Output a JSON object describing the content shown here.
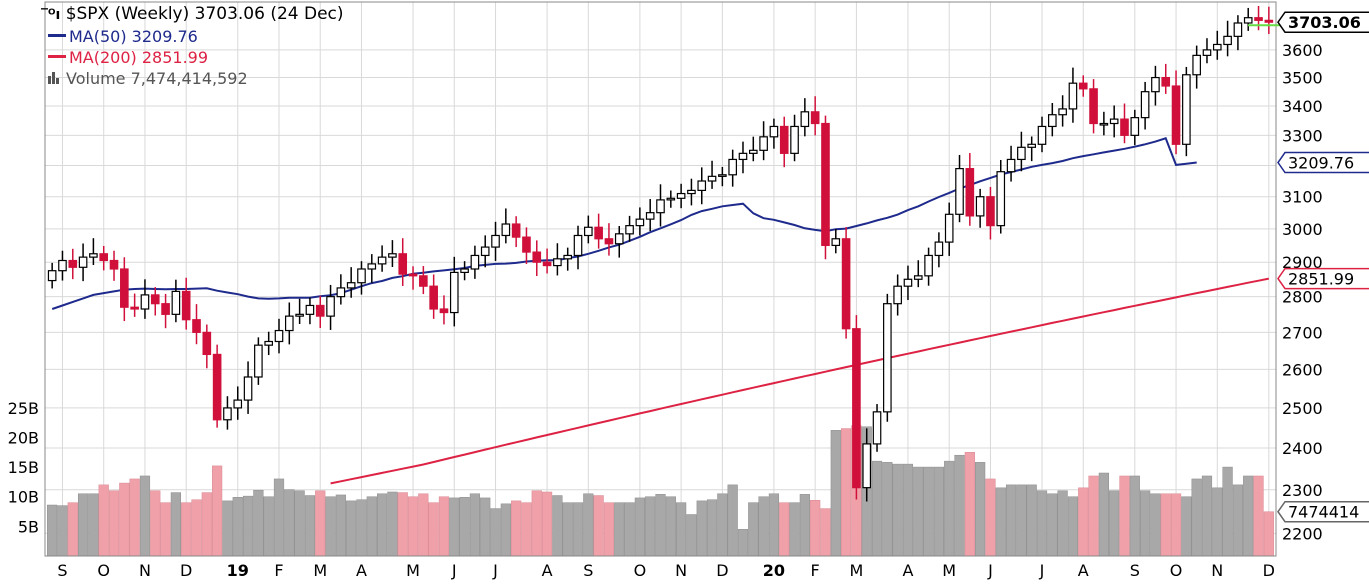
{
  "legend": {
    "title": "$SPX (Weekly) 3703.06 (24 Dec)",
    "ma50": "MA(50) 3209.76",
    "ma200": "MA(200) 2851.99",
    "volume": "Volume 7,474,414,592"
  },
  "colors": {
    "up": "#000000",
    "down": "#d0103a",
    "ma50": "#1e2a8c",
    "ma200": "#dd2244",
    "vol_up": "#a8a8a8",
    "vol_down": "#f0a0a8",
    "grid": "#d9d9d9",
    "last_line": "#66dd44"
  },
  "chart_data": {
    "type": "candlestick",
    "title": "$SPX (Weekly) 3703.06 (24 Dec)",
    "price_axis": {
      "ticks": [
        2200,
        2300,
        2400,
        2500,
        2600,
        2700,
        2800,
        2900,
        3000,
        3100,
        3200,
        3300,
        3400,
        3500,
        3600
      ],
      "tick_labels": [
        "2200",
        "2300",
        "2400",
        "2500",
        "2600",
        "2700",
        "2800",
        "2900",
        "3000",
        "3100",
        "",
        "3300",
        "3400",
        "3500",
        "3600"
      ],
      "scale": "log",
      "range": [
        2150,
        3780
      ]
    },
    "volume_axis": {
      "ticks": [
        5,
        10,
        15,
        20,
        25
      ],
      "tick_labels": [
        "5B",
        "10B",
        "15B",
        "20B",
        "25B"
      ],
      "unit": "B",
      "range": [
        0,
        28
      ]
    },
    "x_labels": [
      {
        "label": "S",
        "week": 1
      },
      {
        "label": "O",
        "week": 5
      },
      {
        "label": "N",
        "week": 9
      },
      {
        "label": "D",
        "week": 13
      },
      {
        "label": "19",
        "week": 18,
        "bold": true
      },
      {
        "label": "F",
        "week": 22
      },
      {
        "label": "M",
        "week": 26
      },
      {
        "label": "A",
        "week": 30
      },
      {
        "label": "M",
        "week": 35
      },
      {
        "label": "J",
        "week": 39
      },
      {
        "label": "J",
        "week": 43
      },
      {
        "label": "A",
        "week": 48
      },
      {
        "label": "S",
        "week": 52
      },
      {
        "label": "O",
        "week": 57
      },
      {
        "label": "N",
        "week": 61
      },
      {
        "label": "D",
        "week": 65
      },
      {
        "label": "20",
        "week": 70,
        "bold": true
      },
      {
        "label": "F",
        "week": 74
      },
      {
        "label": "M",
        "week": 78
      },
      {
        "label": "A",
        "week": 83
      },
      {
        "label": "M",
        "week": 87
      },
      {
        "label": "J",
        "week": 91
      },
      {
        "label": "J",
        "week": 96
      },
      {
        "label": "A",
        "week": 100
      },
      {
        "label": "S",
        "week": 105
      },
      {
        "label": "O",
        "week": 109
      },
      {
        "label": "N",
        "week": 113
      },
      {
        "label": "D",
        "week": 118
      }
    ],
    "right_labels": [
      {
        "text": "3703.06",
        "value": 3703.06,
        "style": "last"
      },
      {
        "text": "3209.76",
        "value": 3209.76,
        "style": "ma50"
      },
      {
        "text": "2851.99",
        "value": 2851.99,
        "style": "ma200"
      },
      {
        "text": "7474414",
        "volume": 7.47,
        "style": "volume"
      }
    ],
    "closes": [
      2875,
      2905,
      2885,
      2915,
      2925,
      2905,
      2880,
      2770,
      2765,
      2805,
      2780,
      2750,
      2815,
      2735,
      2700,
      2640,
      2470,
      2500,
      2520,
      2580,
      2665,
      2675,
      2705,
      2745,
      2750,
      2775,
      2745,
      2800,
      2825,
      2840,
      2880,
      2895,
      2915,
      2925,
      2865,
      2860,
      2830,
      2765,
      2755,
      2870,
      2880,
      2920,
      2945,
      2980,
      3015,
      2975,
      2930,
      2900,
      2890,
      2910,
      2920,
      2980,
      3005,
      2970,
      2955,
      2985,
      3010,
      3030,
      3050,
      3090,
      3095,
      3110,
      3120,
      3150,
      3165,
      3170,
      3220,
      3240,
      3250,
      3295,
      3330,
      3240,
      3330,
      3380,
      3340,
      2950,
      2970,
      2710,
      2305,
      2410,
      2490,
      2780,
      2830,
      2850,
      2860,
      2920,
      2960,
      3045,
      3190,
      3040,
      3100,
      3010,
      3180,
      3220,
      3260,
      3270,
      3330,
      3370,
      3390,
      3480,
      3460,
      3340,
      3340,
      3355,
      3300,
      3360,
      3450,
      3500,
      3470,
      3270,
      3510,
      3580,
      3600,
      3620,
      3650,
      3700,
      3720,
      3710,
      3703.06
    ],
    "volumes": [
      8.6,
      8.5,
      9.0,
      10.5,
      10.5,
      12.0,
      11.0,
      12.3,
      13.0,
      13.5,
      11.0,
      9.0,
      10.7,
      9.0,
      9.5,
      10.7,
      15.2,
      9.3,
      9.9,
      10.1,
      11.1,
      10.0,
      13.0,
      11.2,
      11.0,
      10.2,
      11.0,
      10.0,
      10.3,
      9.3,
      9.5,
      10.0,
      10.5,
      10.8,
      10.7,
      10.0,
      10.5,
      9.0,
      10.0,
      9.8,
      9.9,
      10.5,
      9.8,
      8.0,
      8.8,
      9.3,
      9.0,
      11.0,
      10.8,
      10.2,
      9.0,
      9.0,
      10.5,
      10.2,
      9.0,
      9.0,
      9.0,
      9.8,
      10.0,
      10.4,
      10.0,
      9.0,
      7.0,
      9.3,
      9.5,
      10.5,
      12.0,
      4.5,
      9.0,
      10.0,
      10.5,
      9.0,
      9.0,
      10.4,
      9.4,
      8.0,
      21.2,
      21.5,
      22.0,
      21.8,
      16.0,
      15.8,
      15.5,
      15.5,
      15.0,
      15.0,
      15.0,
      16.0,
      17.0,
      17.5,
      15.8,
      13.0,
      11.5,
      12.0,
      12.0,
      12.0,
      11.0,
      10.5,
      11.0,
      10.0,
      11.5,
      13.5,
      14.0,
      11.0,
      13.5,
      13.5,
      11.0,
      10.5,
      10.5,
      10.5,
      10.0,
      13.0,
      13.5,
      11.5,
      15.0,
      12.0,
      13.5,
      13.5,
      7.47
    ],
    "ma50": [
      2765,
      2775,
      2785,
      2795,
      2805,
      2810,
      2815,
      2820,
      2822,
      2823,
      2822,
      2821,
      2822,
      2822,
      2823,
      2824,
      2817,
      2812,
      2807,
      2800,
      2795,
      2794,
      2795,
      2797,
      2797,
      2797,
      2801,
      2804,
      2810,
      2820,
      2830,
      2839,
      2845,
      2854,
      2859,
      2866,
      2869,
      2873,
      2876,
      2879,
      2883,
      2889,
      2892,
      2895,
      2896,
      2898,
      2902,
      2904,
      2906,
      2906,
      2912,
      2917,
      2925,
      2934,
      2944,
      2952,
      2964,
      2976,
      2990,
      3002,
      3014,
      3027,
      3043,
      3055,
      3062,
      3070,
      3074,
      3078,
      3048,
      3033,
      3028,
      3020,
      3012,
      3002,
      2997,
      2993,
      2999,
      3001,
      3009,
      3017,
      3026,
      3034,
      3044,
      3058,
      3070,
      3085,
      3099,
      3112,
      3126,
      3137,
      3149,
      3160,
      3171,
      3179,
      3187,
      3196,
      3202,
      3208,
      3215,
      3224,
      3231,
      3237,
      3243,
      3249,
      3255,
      3262,
      3270,
      3279,
      3290,
      3202,
      3206,
      3210
    ],
    "ma200": [
      2315,
      2320,
      2325,
      2330,
      2335,
      2340,
      2345,
      2350,
      2355,
      2360,
      2366,
      2372,
      2378,
      2384,
      2390,
      2396,
      2402,
      2408,
      2414,
      2420,
      2426,
      2432,
      2438,
      2444,
      2450,
      2456,
      2462,
      2468,
      2474,
      2480,
      2486,
      2492,
      2498,
      2504,
      2510,
      2516,
      2522,
      2528,
      2534,
      2540,
      2546,
      2552,
      2558,
      2564,
      2570,
      2576,
      2582,
      2588,
      2594,
      2600,
      2606,
      2612,
      2618,
      2624,
      2630,
      2636,
      2642,
      2648,
      2654,
      2660,
      2666,
      2672,
      2678,
      2684,
      2690,
      2696,
      2702,
      2708,
      2714,
      2720,
      2726,
      2732,
      2738,
      2744,
      2750,
      2756,
      2762,
      2768,
      2774,
      2780,
      2786,
      2792,
      2798,
      2804,
      2810,
      2816,
      2822,
      2828,
      2834,
      2840,
      2846,
      2851.99
    ]
  }
}
